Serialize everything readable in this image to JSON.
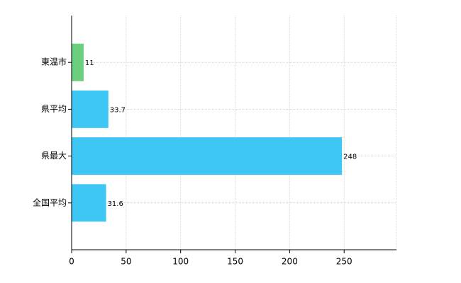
{
  "chart_data": {
    "type": "barh",
    "categories": [
      "東温市",
      "県平均",
      "県最大",
      "全国平均"
    ],
    "values": [
      11,
      33.7,
      248,
      31.6
    ],
    "colors": [
      "#6ad07f",
      "#3ec6f4",
      "#3ec6f4",
      "#3ec6f4"
    ],
    "xlim": [
      0,
      298
    ],
    "xticks": [
      0,
      50,
      100,
      150,
      200,
      250
    ],
    "grid": true
  }
}
